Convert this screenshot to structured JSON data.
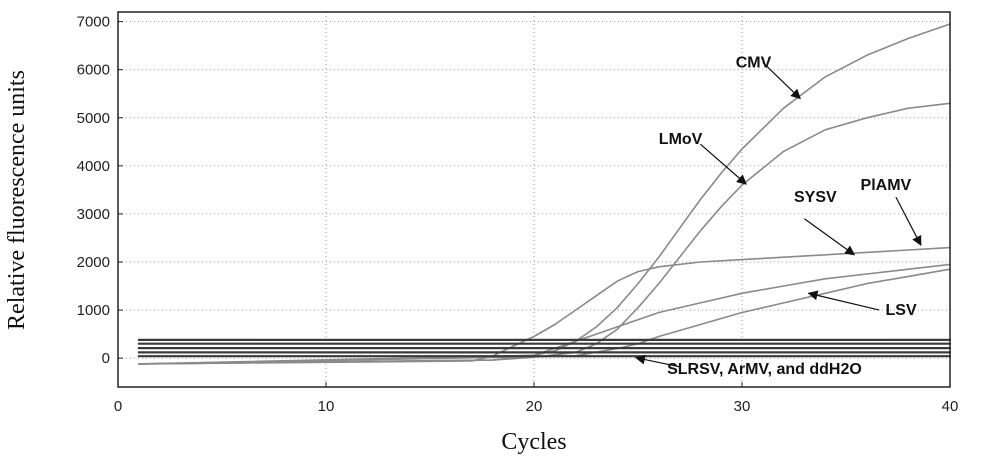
{
  "chart_data": {
    "type": "line",
    "title": "",
    "xlabel": "Cycles",
    "ylabel": "Relative fluorescence units",
    "xlim": [
      0,
      40
    ],
    "ylim": [
      -600,
      7200
    ],
    "xticks": [
      0,
      10,
      20,
      30,
      40
    ],
    "yticks": [
      0,
      1000,
      2000,
      3000,
      4000,
      5000,
      6000,
      7000
    ],
    "grid": true,
    "legend": "none",
    "series": [
      {
        "label_ref": "cmv",
        "x": [
          1,
          18,
          20,
          21,
          22,
          23,
          24,
          25,
          26,
          27,
          28,
          29,
          30,
          32,
          34,
          36,
          38,
          40
        ],
        "y": [
          -120,
          -40,
          60,
          150,
          350,
          650,
          1050,
          1550,
          2100,
          2700,
          3300,
          3850,
          4350,
          5200,
          5850,
          6300,
          6650,
          6950
        ]
      },
      {
        "label_ref": "lmov",
        "x": [
          1,
          18,
          20,
          22,
          23,
          24,
          25,
          26,
          27,
          28,
          29,
          30,
          32,
          34,
          36,
          38,
          40
        ],
        "y": [
          -120,
          -40,
          20,
          120,
          300,
          600,
          1050,
          1550,
          2100,
          2650,
          3150,
          3600,
          4300,
          4750,
          5000,
          5200,
          5300
        ]
      },
      {
        "label_ref": "syvs",
        "x": [
          1,
          17,
          18,
          19,
          20,
          21,
          22,
          23,
          24,
          25,
          26,
          28,
          30,
          34,
          38,
          40
        ],
        "y": [
          -120,
          -60,
          40,
          250,
          450,
          700,
          1000,
          1300,
          1600,
          1800,
          1900,
          2000,
          2050,
          2150,
          2250,
          2300
        ]
      },
      {
        "label_ref": "plamv",
        "x": [
          1,
          20,
          22,
          23,
          24,
          25,
          26,
          28,
          30,
          32,
          34,
          36,
          38,
          40
        ],
        "y": [
          -120,
          60,
          350,
          500,
          650,
          800,
          950,
          1150,
          1350,
          1500,
          1650,
          1750,
          1850,
          1950
        ]
      },
      {
        "label_ref": "lsv",
        "x": [
          1,
          22,
          24,
          25,
          26,
          28,
          30,
          32,
          34,
          36,
          38,
          40
        ],
        "y": [
          -120,
          50,
          200,
          300,
          450,
          700,
          950,
          1150,
          1350,
          1550,
          1700,
          1850
        ]
      },
      {
        "label_ref": "negative",
        "x": [
          1,
          40
        ],
        "y": [
          380,
          380
        ]
      },
      {
        "label_ref": "negative",
        "x": [
          1,
          40
        ],
        "y": [
          300,
          300
        ]
      },
      {
        "label_ref": "negative",
        "x": [
          1,
          40
        ],
        "y": [
          210,
          210
        ]
      },
      {
        "label_ref": "negative",
        "x": [
          1,
          40
        ],
        "y": [
          120,
          120
        ]
      },
      {
        "label_ref": "negative",
        "x": [
          1,
          40
        ],
        "y": [
          40,
          40
        ]
      }
    ],
    "annotations": [
      {
        "id": "cmv",
        "text": "CMV",
        "tx": 29.7,
        "ty": 6050,
        "ax1": 31.0,
        "ay1": 6150,
        "ax2": 32.8,
        "ay2": 5400
      },
      {
        "id": "lmov",
        "text": "LMoV",
        "tx": 26.0,
        "ty": 4450,
        "ax1": 28.0,
        "ay1": 4450,
        "ax2": 30.2,
        "ay2": 3620
      },
      {
        "id": "syvs",
        "text": "SYSV",
        "tx": 32.5,
        "ty": 3250,
        "ax1": 33.0,
        "ay1": 2900,
        "ax2": 35.4,
        "ay2": 2150
      },
      {
        "id": "plamv",
        "text": "PlAMV",
        "tx": 35.7,
        "ty": 3500,
        "ax1": 37.4,
        "ay1": 3350,
        "ax2": 38.6,
        "ay2": 2350
      },
      {
        "id": "lsv",
        "text": "LSV",
        "tx": 36.9,
        "ty": 900,
        "ax1": 36.6,
        "ay1": 1000,
        "ax2": 33.2,
        "ay2": 1350
      },
      {
        "id": "negative",
        "text": "SLRSV, ArMV, and ddH2O",
        "tx": 26.4,
        "ty": -330,
        "ax1": 27.0,
        "ay1": -180,
        "ax2": 24.9,
        "ay2": 10
      }
    ]
  },
  "colors": {
    "frame": "#222222",
    "grid": "#9a9a9a",
    "curve": "#8a8a8a",
    "baseline": "#3a3a3a",
    "arrow": "#111111"
  }
}
